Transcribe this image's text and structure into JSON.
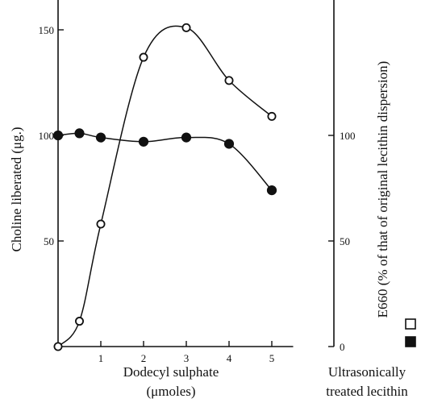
{
  "chart_data": {
    "type": "line",
    "xlabel": "Dodecyl sulphate",
    "xlabel_units": "(μmoles)",
    "ylabel_left": "Choline liberated (μg.)",
    "ylabel_right": "E660 (% of that of original lecithin dispersion)",
    "right_caption_line1": "Ultrasonically",
    "right_caption_line2": "treated lecithin",
    "xlim": [
      0,
      5.5
    ],
    "ylim_left": [
      0,
      165
    ],
    "ylim_right": [
      0,
      165
    ],
    "x_ticks": [
      1,
      2,
      3,
      4,
      5
    ],
    "y_left_ticks": [
      50,
      100,
      150
    ],
    "y_right_ticks": [
      0,
      50,
      100
    ],
    "series": [
      {
        "marker": "open-circle",
        "axis": "left",
        "x": [
          0,
          0.5,
          1,
          2,
          3,
          4,
          5
        ],
        "y": [
          0,
          12,
          58,
          137,
          151,
          126,
          109
        ]
      },
      {
        "marker": "filled-circle",
        "axis": "right",
        "x": [
          0,
          0.5,
          1,
          2,
          3,
          4,
          5
        ],
        "y": [
          100,
          101,
          99,
          97,
          99,
          96,
          74
        ]
      }
    ],
    "legend": [
      {
        "symbol": "open-square",
        "series": 0
      },
      {
        "symbol": "filled-square",
        "series": 1
      }
    ],
    "colors": {
      "ink": "#111111",
      "background": "#ffffff"
    }
  }
}
